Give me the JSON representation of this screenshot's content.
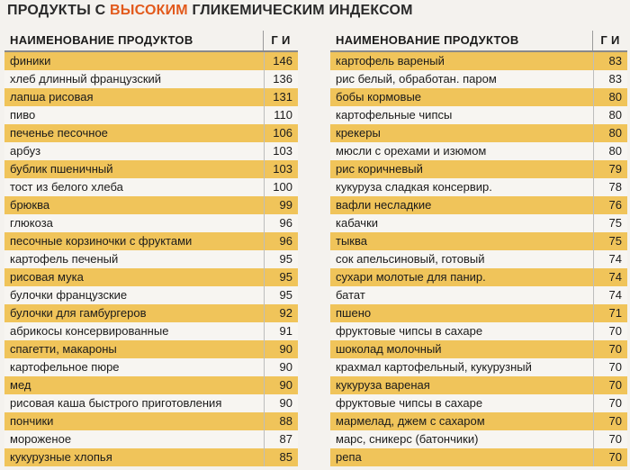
{
  "title": {
    "part1": "ПРОДУКТЫ С ",
    "highlight": "ВЫСОКИМ",
    "part2": " ГЛИКЕМИЧЕСКИМ ИНДЕКСОМ"
  },
  "colors": {
    "highlight_row": "#f0c45a",
    "accent_text": "#e25a1c"
  },
  "left": {
    "header": {
      "name": "НАИМЕНОВАНИЕ ПРОДУКТОВ",
      "gi": "Г И"
    },
    "rows": [
      {
        "name": "финики",
        "gi": "146",
        "hl": true
      },
      {
        "name": "хлеб длинный французский",
        "gi": "136",
        "hl": false
      },
      {
        "name": "лапша рисовая",
        "gi": "131",
        "hl": true
      },
      {
        "name": "пиво",
        "gi": "110",
        "hl": false
      },
      {
        "name": "печенье песочное",
        "gi": "106",
        "hl": true
      },
      {
        "name": "арбуз",
        "gi": "103",
        "hl": false
      },
      {
        "name": "бублик пшеничный",
        "gi": "103",
        "hl": true
      },
      {
        "name": "тост из белого хлеба",
        "gi": "100",
        "hl": false
      },
      {
        "name": "брюква",
        "gi": "99",
        "hl": true
      },
      {
        "name": "глюкоза",
        "gi": "96",
        "hl": false
      },
      {
        "name": "песочные корзиночки с фруктами",
        "gi": "96",
        "hl": true
      },
      {
        "name": "картофель печеный",
        "gi": "95",
        "hl": false
      },
      {
        "name": "рисовая мука",
        "gi": "95",
        "hl": true
      },
      {
        "name": "булочки французские",
        "gi": "95",
        "hl": false
      },
      {
        "name": "булочки для гамбургеров",
        "gi": "92",
        "hl": true
      },
      {
        "name": "абрикосы консервированные",
        "gi": "91",
        "hl": false
      },
      {
        "name": "спагетти, макароны",
        "gi": "90",
        "hl": true
      },
      {
        "name": "картофельное пюре",
        "gi": "90",
        "hl": false
      },
      {
        "name": "мед",
        "gi": "90",
        "hl": true
      },
      {
        "name": "рисовая каша быстрого приготовления",
        "gi": "90",
        "hl": false
      },
      {
        "name": "пончики",
        "gi": "88",
        "hl": true
      },
      {
        "name": "мороженое",
        "gi": "87",
        "hl": false
      },
      {
        "name": "кукурузные хлопья",
        "gi": "85",
        "hl": true
      }
    ]
  },
  "right": {
    "header": {
      "name": "НАИМЕНОВАНИЕ ПРОДУКТОВ",
      "gi": "Г И"
    },
    "rows": [
      {
        "name": "картофель вареный",
        "gi": "83",
        "hl": true
      },
      {
        "name": "рис белый, обработан. паром",
        "gi": "83",
        "hl": false
      },
      {
        "name": "бобы кормовые",
        "gi": "80",
        "hl": true
      },
      {
        "name": "картофельные чипсы",
        "gi": "80",
        "hl": false
      },
      {
        "name": "крекеры",
        "gi": "80",
        "hl": true
      },
      {
        "name": "мюсли с орехами и изюмом",
        "gi": "80",
        "hl": false
      },
      {
        "name": "рис коричневый",
        "gi": "79",
        "hl": true
      },
      {
        "name": "кукуруза сладкая консервир.",
        "gi": "78",
        "hl": false
      },
      {
        "name": "вафли несладкие",
        "gi": "76",
        "hl": true
      },
      {
        "name": "кабачки",
        "gi": "75",
        "hl": false
      },
      {
        "name": "тыква",
        "gi": "75",
        "hl": true
      },
      {
        "name": "сок апельсиновый, готовый",
        "gi": "74",
        "hl": false
      },
      {
        "name": "сухари молотые для панир.",
        "gi": "74",
        "hl": true
      },
      {
        "name": "батат",
        "gi": "74",
        "hl": false
      },
      {
        "name": "пшено",
        "gi": "71",
        "hl": true
      },
      {
        "name": "фруктовые чипсы в сахаре",
        "gi": "70",
        "hl": false
      },
      {
        "name": "шоколад молочный",
        "gi": "70",
        "hl": true
      },
      {
        "name": "крахмал картофельный, кукурузный",
        "gi": "70",
        "hl": false
      },
      {
        "name": "кукуруза вареная",
        "gi": "70",
        "hl": true
      },
      {
        "name": "фруктовые чипсы в сахаре",
        "gi": "70",
        "hl": false
      },
      {
        "name": "мармелад, джем с сахаром",
        "gi": "70",
        "hl": true
      },
      {
        "name": "марс, сникерс (батончики)",
        "gi": "70",
        "hl": false
      },
      {
        "name": "репа",
        "gi": "70",
        "hl": true
      }
    ]
  }
}
